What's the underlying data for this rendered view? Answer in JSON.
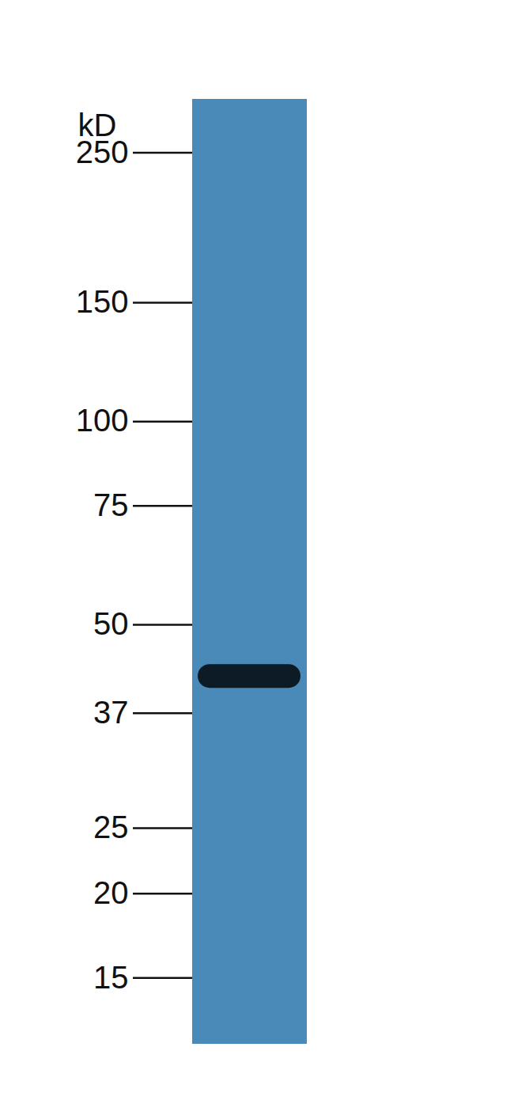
{
  "chart_data": {
    "type": "blot",
    "y_label": "kD",
    "categories": [
      null
    ],
    "values": [
      42
    ],
    "color": "#0d1b26",
    "log": "y",
    "ylim": [
      12,
      300
    ],
    "yticks": [
      250,
      150,
      100,
      75,
      50,
      37,
      25,
      20,
      15
    ],
    "tick_labels": "y"
  }
}
